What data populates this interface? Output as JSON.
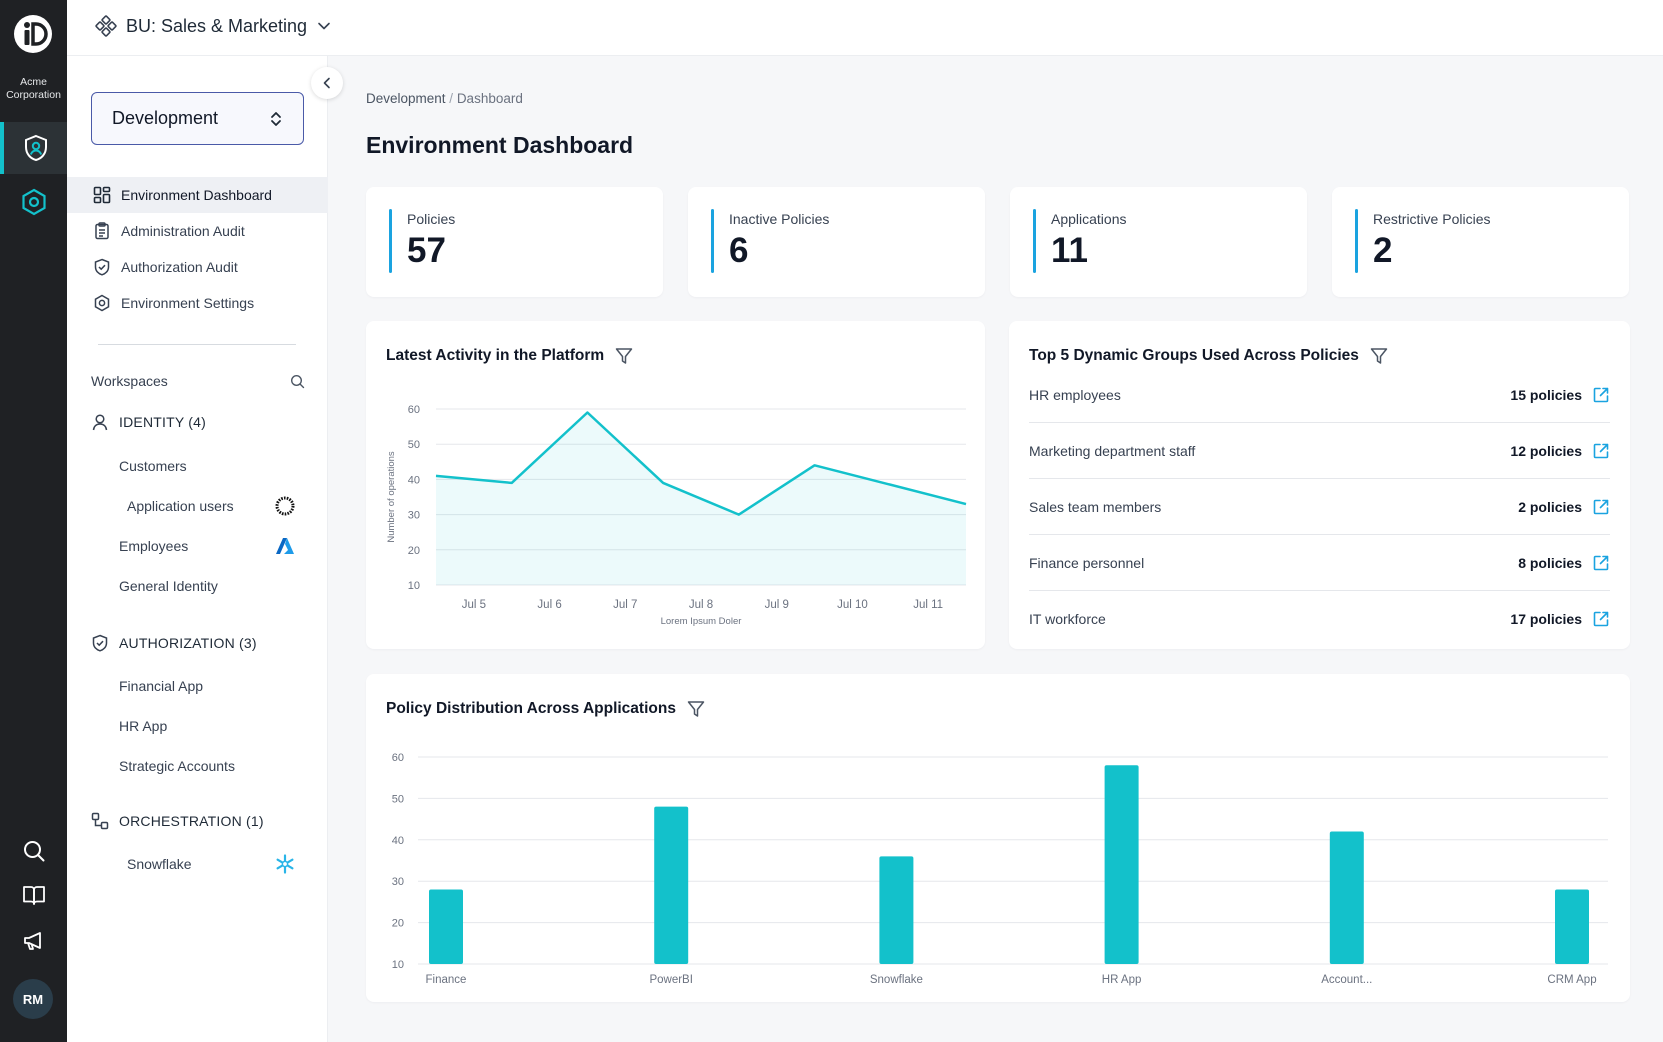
{
  "rail": {
    "org_line1": "Acme",
    "org_line2": "Corporation",
    "user_initials": "RM"
  },
  "topbar": {
    "bu_label": "BU: Sales & Marketing"
  },
  "sidebar": {
    "environment": "Development",
    "nav": [
      {
        "label": "Environment Dashboard",
        "icon": "dashboard-icon"
      },
      {
        "label": "Administration Audit",
        "icon": "clipboard-icon"
      },
      {
        "label": "Authorization Audit",
        "icon": "shield-check-icon"
      },
      {
        "label": "Environment Settings",
        "icon": "hexagon-gear-icon"
      }
    ],
    "workspaces_label": "Workspaces",
    "identity": {
      "heading": "IDENTITY (4)",
      "items": [
        "Customers",
        "Application users",
        "Employees",
        "General Identity"
      ]
    },
    "authorization": {
      "heading": "AUTHORIZATION (3)",
      "items": [
        "Financial App",
        "HR App",
        "Strategic Accounts"
      ]
    },
    "orchestration": {
      "heading": "ORCHESTRATION (1)",
      "items": [
        "Snowflake"
      ]
    }
  },
  "breadcrumb": {
    "parent": "Development",
    "sep": " / ",
    "current": "Dashboard"
  },
  "page_title": "Environment Dashboard",
  "stats": [
    {
      "label": "Policies",
      "value": "57"
    },
    {
      "label": "Inactive Policies",
      "value": "6"
    },
    {
      "label": "Applications",
      "value": "11"
    },
    {
      "label": "Restrictive Policies",
      "value": "2"
    }
  ],
  "colors": {
    "accent": "#13c1cb",
    "stat_bar": "#1aa3e0",
    "link": "#1aa3e0"
  },
  "activity": {
    "title": "Latest Activity in the Platform"
  },
  "groups": {
    "title": "Top 5 Dynamic Groups Used Across Policies",
    "rows": [
      {
        "name": "HR employees",
        "count": "15 policies"
      },
      {
        "name": "Marketing department staff",
        "count": "12 policies"
      },
      {
        "name": "Sales team members",
        "count": "2 policies"
      },
      {
        "name": "Finance personnel",
        "count": "8 policies"
      },
      {
        "name": "IT workforce",
        "count": "17 policies"
      }
    ]
  },
  "distribution": {
    "title": "Policy Distribution Across Applications"
  },
  "chart_data": [
    {
      "type": "area",
      "title": "Latest Activity in the Platform",
      "xlabel": "Lorem Ipsum Doler",
      "ylabel": "Number of operations",
      "categories": [
        "Jul 5",
        "Jul 6",
        "Jul 7",
        "Jul 8",
        "Jul 9",
        "Jul 10",
        "Jul 11"
      ],
      "values": [
        41,
        39,
        59,
        39,
        30,
        44,
        33
      ],
      "yticks": [
        10,
        20,
        30,
        40,
        50,
        60
      ],
      "ylim": [
        10,
        60
      ]
    },
    {
      "type": "bar",
      "title": "Policy Distribution Across Applications",
      "categories": [
        "Finance",
        "PowerBI",
        "Snowflake",
        "HR App",
        "Account...",
        "CRM App"
      ],
      "values": [
        28,
        48,
        36,
        58,
        42,
        28
      ],
      "yticks": [
        10,
        20,
        30,
        40,
        50,
        60
      ],
      "ylim": [
        10,
        60
      ]
    }
  ]
}
